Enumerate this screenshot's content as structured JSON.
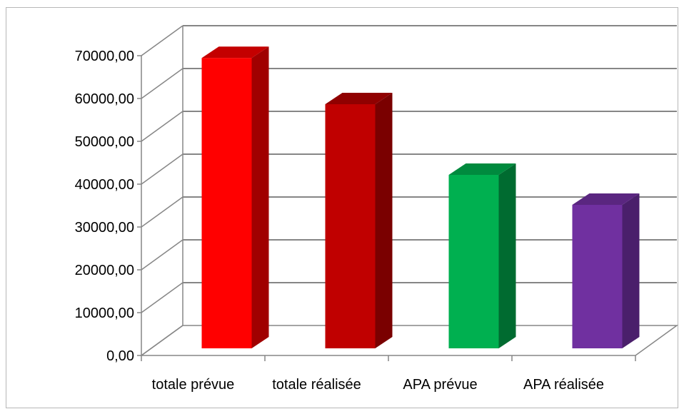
{
  "chart_data": {
    "type": "bar",
    "style": "3d-column",
    "categories": [
      "totale prévue",
      "totale réalisée",
      "APA prévue",
      "APA réalisée"
    ],
    "values": [
      67800,
      57000,
      40500,
      33500
    ],
    "bar_colors": [
      {
        "front": "#ff0000",
        "side": "#a00000",
        "top": "#c40000"
      },
      {
        "front": "#c00000",
        "side": "#7a0000",
        "top": "#900000"
      },
      {
        "front": "#00b050",
        "side": "#006b30",
        "top": "#008a3e"
      },
      {
        "front": "#7030a0",
        "side": "#4a1f6b",
        "top": "#5a2680"
      }
    ],
    "ylim": [
      0,
      70000
    ],
    "ytick_step": 10000,
    "ytick_labels": [
      "0,00",
      "10000,00",
      "20000,00",
      "30000,00",
      "40000,00",
      "50000,00",
      "60000,00",
      "70000,00"
    ],
    "grid": true,
    "grid_color": "#868686",
    "legend": false
  }
}
